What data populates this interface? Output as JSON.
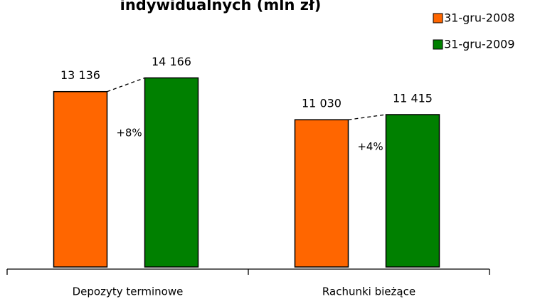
{
  "chart_data": {
    "type": "bar",
    "title": "indywidualnych (mln zł)",
    "categories": [
      "Depozyty terminowe",
      "Rachunki bieżące"
    ],
    "series": [
      {
        "name": "31-gru-2008",
        "color": "#ff6600",
        "values": [
          13136,
          11030
        ],
        "value_labels": [
          "13 136",
          "11 030"
        ]
      },
      {
        "name": "31-gru-2009",
        "color": "#008000",
        "values": [
          14166,
          11415
        ],
        "value_labels": [
          "14 166",
          "11 415"
        ]
      }
    ],
    "annotations": [
      "+8%",
      "+4%"
    ],
    "ylim": [
      0,
      20000
    ]
  }
}
